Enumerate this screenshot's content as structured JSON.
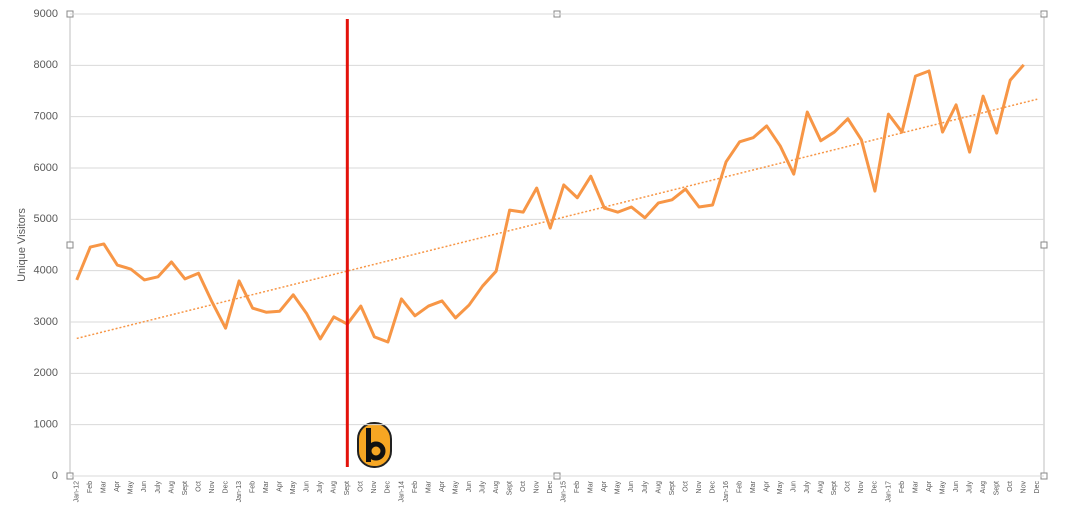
{
  "chart_data": {
    "type": "line",
    "y_label": "Unique Visitors",
    "categories": [
      "Jan-12",
      "Feb",
      "Mar",
      "Apr",
      "May",
      "Jun",
      "July",
      "Aug",
      "Sept",
      "Oct",
      "Nov",
      "Dec",
      "Jan-13",
      "Feb",
      "Mar",
      "Apr",
      "May",
      "Jun",
      "July",
      "Aug",
      "Sept",
      "Oct",
      "Nov",
      "Dec",
      "Jan-14",
      "Feb",
      "Mar",
      "Apr",
      "May",
      "Jun",
      "July",
      "Aug",
      "Sept",
      "Oct",
      "Nov",
      "Dec",
      "Jan-15",
      "Feb",
      "Mar",
      "Apr",
      "May",
      "Jun",
      "July",
      "Aug",
      "Sept",
      "Oct",
      "Nov",
      "Dec",
      "Jan-16",
      "Feb",
      "Mar",
      "Apr",
      "May",
      "Jun",
      "July",
      "Aug",
      "Sept",
      "Oct",
      "Nov",
      "Dec",
      "Jan-17",
      "Feb",
      "Mar",
      "Apr",
      "May",
      "Jun",
      "July",
      "Aug",
      "Sept",
      "Oct",
      "Nov",
      "Dec"
    ],
    "values": [
      3820,
      4460,
      4520,
      4110,
      4030,
      3820,
      3880,
      4170,
      3840,
      3950,
      3390,
      2880,
      3800,
      3270,
      3190,
      3210,
      3530,
      3160,
      2670,
      3100,
      2960,
      3310,
      2710,
      2610,
      3450,
      3120,
      3310,
      3410,
      3080,
      3330,
      3700,
      3990,
      5180,
      5140,
      5610,
      4830,
      5670,
      5420,
      5840,
      5220,
      5140,
      5240,
      5030,
      5320,
      5380,
      5590,
      5240,
      5280,
      6120,
      6510,
      6590,
      6820,
      6430,
      5880,
      7090,
      6530,
      6700,
      6960,
      6550,
      5550,
      7050,
      6700,
      7790,
      7890,
      6700,
      7230,
      6310,
      7400,
      6680,
      7710,
      8010,
      null
    ],
    "color": "#f79646",
    "trendline": {
      "start": 2680,
      "end": 7340,
      "color": "#f79646"
    },
    "event_line": {
      "category_index": 20,
      "color": "#e3120b"
    },
    "ylim": [
      0,
      9000
    ],
    "yticks": [
      0,
      1000,
      2000,
      3000,
      4000,
      5000,
      6000,
      7000,
      8000,
      9000
    ],
    "grid": true
  }
}
